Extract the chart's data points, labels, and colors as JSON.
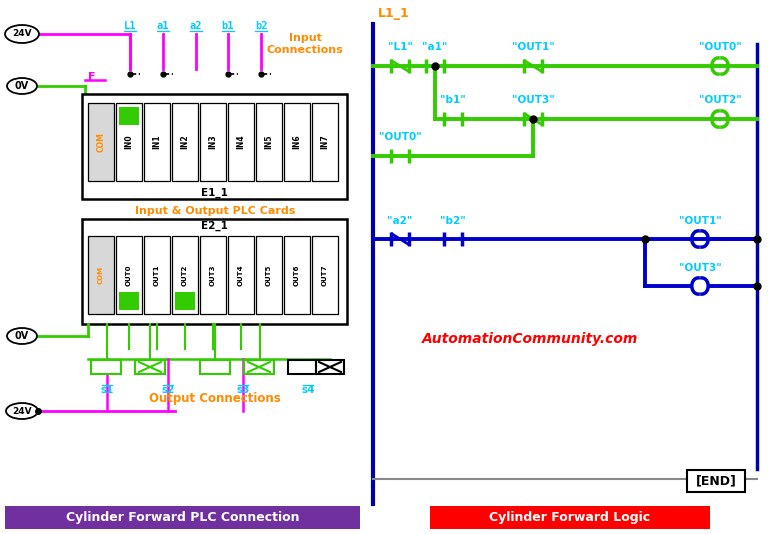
{
  "bg_color": "#ffffff",
  "title_left": "Cylinder Forward PLC Connection",
  "title_right": "Cylinder Forward Logic",
  "title_left_bg": "#7030a0",
  "title_right_bg": "#ff0000",
  "title_color": "#ffffff",
  "orange_color": "#ff8c00",
  "green_color": "#33cc00",
  "magenta_color": "#ff00ff",
  "cyan_color": "#00ccff",
  "blue_color": "#0000cc",
  "dark_blue": "#0000aa",
  "red_color": "#ff0000",
  "black": "#000000",
  "gray": "#888888",
  "input_labels": [
    "L1",
    "a1",
    "a2",
    "b1",
    "b2"
  ],
  "plc_input_slots": [
    "COM",
    "IN0",
    "IN1",
    "IN2",
    "IN3",
    "IN4",
    "IN5",
    "IN6",
    "IN7"
  ],
  "plc_output_slots": [
    "COM",
    "OUT0",
    "OUT1",
    "OUT2",
    "OUT3",
    "OUT4",
    "OUT5",
    "OUT6",
    "OUT7"
  ],
  "output_labels": [
    "s1",
    "s2",
    "s3",
    "s4"
  ],
  "watermark": "AutomationCommunity.com"
}
